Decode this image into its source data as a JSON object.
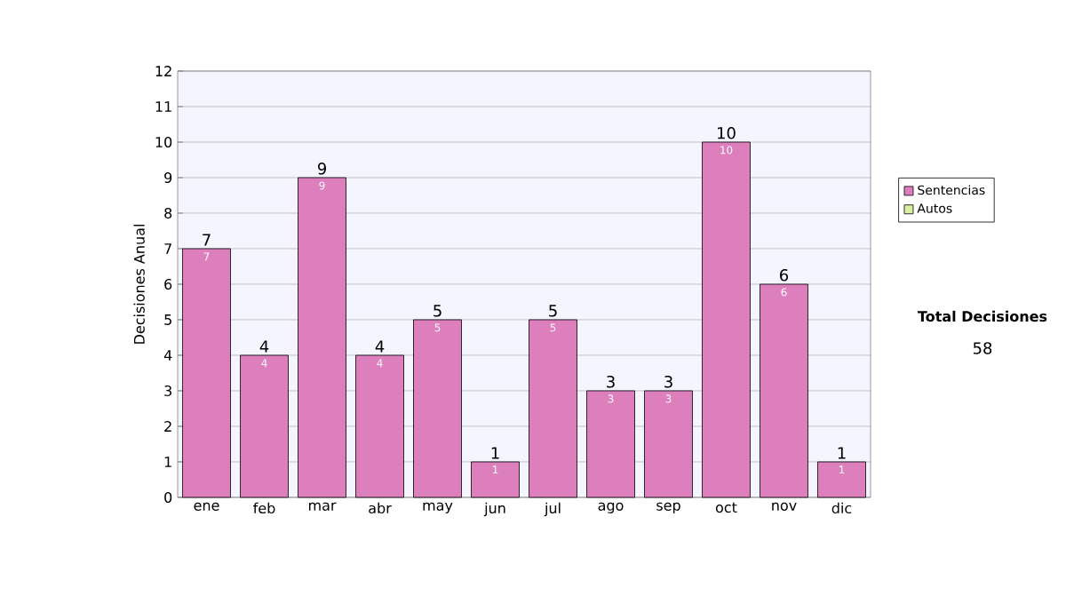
{
  "chart_data": {
    "type": "bar",
    "stacked": true,
    "ylabel": "Decisiones Anual",
    "categories": [
      "ene",
      "feb",
      "mar",
      "abr",
      "may",
      "jun",
      "jul",
      "ago",
      "sep",
      "oct",
      "nov",
      "dic"
    ],
    "series": [
      {
        "name": "Sentencias",
        "color": "#dd7fbd",
        "values": [
          7,
          4,
          9,
          4,
          5,
          1,
          5,
          3,
          3,
          10,
          6,
          1
        ],
        "value_labels": [
          "7",
          "4",
          "9",
          "4",
          "5",
          "1",
          "5",
          "3",
          "3",
          "10",
          "6",
          "1"
        ]
      },
      {
        "name": "Autos",
        "color": "#d8eea0",
        "values": [
          0,
          0,
          0,
          0,
          0,
          0,
          0,
          0,
          0,
          0,
          0,
          0
        ]
      }
    ],
    "totals": [
      "7",
      "4",
      "9",
      "4",
      "5",
      "1",
      "5",
      "3",
      "3",
      "10",
      "6",
      "1"
    ],
    "ylim": [
      0,
      12
    ],
    "yticks": [
      0,
      1,
      2,
      3,
      4,
      5,
      6,
      7,
      8,
      9,
      10,
      11,
      12
    ],
    "grid": "y",
    "legend": "right",
    "annotations": [
      "Total Decisiones",
      "58"
    ]
  }
}
